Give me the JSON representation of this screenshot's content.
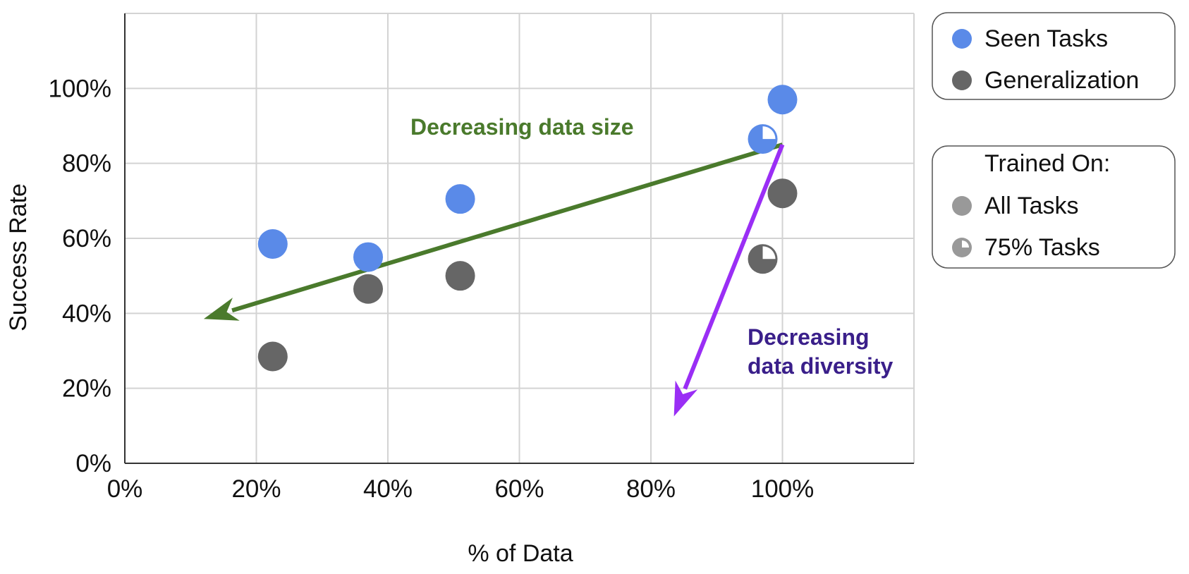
{
  "chart_data": {
    "type": "scatter",
    "xlabel": "% of Data",
    "ylabel": "Success Rate",
    "xlim": [
      0,
      120
    ],
    "ylim": [
      0,
      120
    ],
    "x_ticks": [
      "0%",
      "20%",
      "40%",
      "60%",
      "80%",
      "100%"
    ],
    "y_ticks": [
      "0%",
      "20%",
      "40%",
      "60%",
      "80%",
      "100%"
    ],
    "grid": true,
    "series": [
      {
        "name": "Seen Tasks",
        "color": "#5a8ae8",
        "points": [
          {
            "x": 22.5,
            "y": 58.5,
            "trained_on": "All Tasks"
          },
          {
            "x": 37,
            "y": 55,
            "trained_on": "All Tasks"
          },
          {
            "x": 51,
            "y": 70.5,
            "trained_on": "All Tasks"
          },
          {
            "x": 97,
            "y": 86.5,
            "trained_on": "75% Tasks"
          },
          {
            "x": 100,
            "y": 97,
            "trained_on": "All Tasks"
          }
        ]
      },
      {
        "name": "Generalization",
        "color": "#666666",
        "points": [
          {
            "x": 22.5,
            "y": 28.5,
            "trained_on": "All Tasks"
          },
          {
            "x": 37,
            "y": 46.5,
            "trained_on": "All Tasks"
          },
          {
            "x": 51,
            "y": 50,
            "trained_on": "All Tasks"
          },
          {
            "x": 97,
            "y": 54.5,
            "trained_on": "75% Tasks"
          },
          {
            "x": 100,
            "y": 72,
            "trained_on": "All Tasks"
          }
        ]
      }
    ],
    "legend_placement": "right",
    "legend_series": [
      {
        "label": "Seen Tasks",
        "color": "#5a8ae8"
      },
      {
        "label": "Generalization",
        "color": "#666666"
      }
    ],
    "legend_trained": {
      "title": "Trained On:",
      "items": [
        {
          "label": "All Tasks",
          "marker": "full"
        },
        {
          "label": "75% Tasks",
          "marker": "quarter-cut"
        }
      ]
    },
    "annotations": [
      {
        "text": "Decreasing data size",
        "color": "#4a7a2c",
        "arrow_from": [
          100,
          85
        ],
        "arrow_to": [
          12,
          38.5
        ]
      },
      {
        "text_lines": [
          "Decreasing",
          "data diversity"
        ],
        "color": "#3a1f8a",
        "arrow_from": [
          100,
          85
        ],
        "arrow_to": [
          83.5,
          12.5
        ],
        "arrow_color": "#9a2ef5"
      }
    ]
  }
}
